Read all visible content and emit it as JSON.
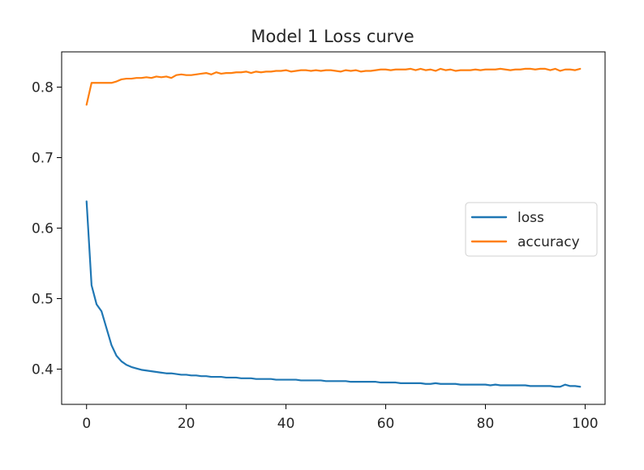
{
  "chart_data": {
    "type": "line",
    "title": "Model 1 Loss curve",
    "xlabel": "",
    "ylabel": "",
    "xlim": [
      -5,
      104
    ],
    "ylim": [
      0.35,
      0.85
    ],
    "x_ticks": [
      0,
      20,
      40,
      60,
      80,
      100
    ],
    "y_ticks": [
      0.4,
      0.5,
      0.6,
      0.7,
      0.8
    ],
    "grid": false,
    "legend_position": "center-right",
    "series": [
      {
        "name": "loss",
        "color": "#1f77b4",
        "x": [
          0,
          1,
          2,
          3,
          4,
          5,
          6,
          7,
          8,
          9,
          10,
          11,
          12,
          13,
          14,
          15,
          16,
          17,
          18,
          19,
          20,
          21,
          22,
          23,
          24,
          25,
          26,
          27,
          28,
          29,
          30,
          31,
          32,
          33,
          34,
          35,
          36,
          37,
          38,
          39,
          40,
          41,
          42,
          43,
          44,
          45,
          46,
          47,
          48,
          49,
          50,
          51,
          52,
          53,
          54,
          55,
          56,
          57,
          58,
          59,
          60,
          61,
          62,
          63,
          64,
          65,
          66,
          67,
          68,
          69,
          70,
          71,
          72,
          73,
          74,
          75,
          76,
          77,
          78,
          79,
          80,
          81,
          82,
          83,
          84,
          85,
          86,
          87,
          88,
          89,
          90,
          91,
          92,
          93,
          94,
          95,
          96,
          97,
          98,
          99
        ],
        "values": [
          0.638,
          0.519,
          0.492,
          0.482,
          0.458,
          0.434,
          0.419,
          0.411,
          0.406,
          0.403,
          0.401,
          0.399,
          0.398,
          0.397,
          0.396,
          0.395,
          0.394,
          0.394,
          0.393,
          0.392,
          0.392,
          0.391,
          0.391,
          0.39,
          0.39,
          0.389,
          0.389,
          0.389,
          0.388,
          0.388,
          0.388,
          0.387,
          0.387,
          0.387,
          0.386,
          0.386,
          0.386,
          0.386,
          0.385,
          0.385,
          0.385,
          0.385,
          0.385,
          0.384,
          0.384,
          0.384,
          0.384,
          0.384,
          0.383,
          0.383,
          0.383,
          0.383,
          0.383,
          0.382,
          0.382,
          0.382,
          0.382,
          0.382,
          0.382,
          0.381,
          0.381,
          0.381,
          0.381,
          0.38,
          0.38,
          0.38,
          0.38,
          0.38,
          0.379,
          0.379,
          0.38,
          0.379,
          0.379,
          0.379,
          0.379,
          0.378,
          0.378,
          0.378,
          0.378,
          0.378,
          0.378,
          0.377,
          0.378,
          0.377,
          0.377,
          0.377,
          0.377,
          0.377,
          0.377,
          0.376,
          0.376,
          0.376,
          0.376,
          0.376,
          0.375,
          0.375,
          0.378,
          0.376,
          0.376,
          0.375
        ]
      },
      {
        "name": "accuracy",
        "color": "#ff7f0e",
        "x": [
          0,
          1,
          2,
          3,
          4,
          5,
          6,
          7,
          8,
          9,
          10,
          11,
          12,
          13,
          14,
          15,
          16,
          17,
          18,
          19,
          20,
          21,
          22,
          23,
          24,
          25,
          26,
          27,
          28,
          29,
          30,
          31,
          32,
          33,
          34,
          35,
          36,
          37,
          38,
          39,
          40,
          41,
          42,
          43,
          44,
          45,
          46,
          47,
          48,
          49,
          50,
          51,
          52,
          53,
          54,
          55,
          56,
          57,
          58,
          59,
          60,
          61,
          62,
          63,
          64,
          65,
          66,
          67,
          68,
          69,
          70,
          71,
          72,
          73,
          74,
          75,
          76,
          77,
          78,
          79,
          80,
          81,
          82,
          83,
          84,
          85,
          86,
          87,
          88,
          89,
          90,
          91,
          92,
          93,
          94,
          95,
          96,
          97,
          98,
          99
        ],
        "values": [
          0.775,
          0.806,
          0.806,
          0.806,
          0.806,
          0.806,
          0.808,
          0.811,
          0.812,
          0.812,
          0.813,
          0.813,
          0.814,
          0.813,
          0.815,
          0.814,
          0.815,
          0.813,
          0.817,
          0.818,
          0.817,
          0.817,
          0.818,
          0.819,
          0.82,
          0.818,
          0.821,
          0.819,
          0.82,
          0.82,
          0.821,
          0.821,
          0.822,
          0.82,
          0.822,
          0.821,
          0.822,
          0.822,
          0.823,
          0.823,
          0.824,
          0.822,
          0.823,
          0.824,
          0.824,
          0.823,
          0.824,
          0.823,
          0.824,
          0.824,
          0.823,
          0.822,
          0.824,
          0.823,
          0.824,
          0.822,
          0.823,
          0.823,
          0.824,
          0.825,
          0.825,
          0.824,
          0.825,
          0.825,
          0.825,
          0.826,
          0.824,
          0.826,
          0.824,
          0.825,
          0.823,
          0.826,
          0.824,
          0.825,
          0.823,
          0.824,
          0.824,
          0.824,
          0.825,
          0.824,
          0.825,
          0.825,
          0.825,
          0.826,
          0.825,
          0.824,
          0.825,
          0.825,
          0.826,
          0.826,
          0.825,
          0.826,
          0.826,
          0.824,
          0.826,
          0.823,
          0.825,
          0.825,
          0.824,
          0.826
        ]
      }
    ]
  }
}
